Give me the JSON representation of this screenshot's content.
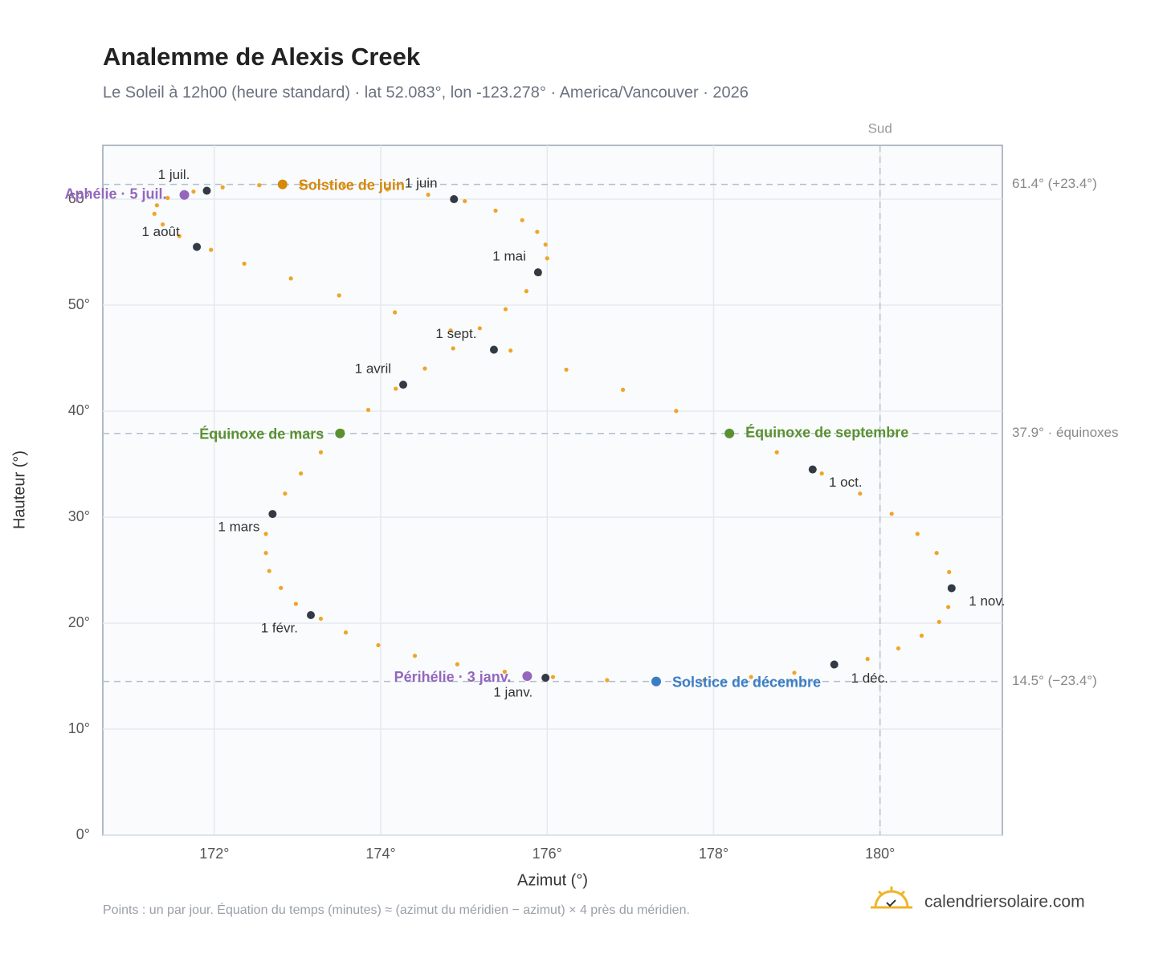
{
  "chart_data": {
    "type": "scatter",
    "title": "Analemme de Alexis Creek",
    "subtitle": "Le Soleil à 12h00 (heure standard) · lat 52.083°, lon -123.278° · America/Vancouver · 2026",
    "x_label": "Azimut (°)",
    "y_label": "Hauteur (°)",
    "xlim": [
      170.66,
      181.47
    ],
    "ylim": [
      0,
      65.08
    ],
    "xticks": [
      {
        "value": 172,
        "label": "172°"
      },
      {
        "value": 174,
        "label": "174°"
      },
      {
        "value": 176,
        "label": "176°"
      },
      {
        "value": 178,
        "label": "178°"
      },
      {
        "value": 180,
        "label": "180°"
      }
    ],
    "yticks": [
      {
        "value": 0,
        "label": "0°"
      },
      {
        "value": 10,
        "label": "10°"
      },
      {
        "value": 20,
        "label": "20°"
      },
      {
        "value": 30,
        "label": "30°"
      },
      {
        "value": 40,
        "label": "40°"
      },
      {
        "value": 50,
        "label": "50°"
      },
      {
        "value": 60,
        "label": "60°"
      }
    ],
    "grid": true,
    "points": {
      "color": "#f0a428",
      "x": [
        176.07,
        175.49,
        174.92,
        174.41,
        173.97,
        173.58,
        173.28,
        172.98,
        172.8,
        172.66,
        172.62,
        172.62,
        172.7,
        172.85,
        173.04,
        173.28,
        173.54,
        173.85,
        174.18,
        174.53,
        174.87,
        175.19,
        175.5,
        175.75,
        175.91,
        176.0,
        175.98,
        175.88,
        175.7,
        175.38,
        175.01,
        174.57,
        174.08,
        173.56,
        173.05,
        172.54,
        172.1,
        171.75,
        171.44,
        171.31,
        171.28,
        171.38,
        171.58,
        171.96,
        172.36,
        172.92,
        173.5,
        174.17,
        174.84,
        175.56,
        176.23,
        176.91,
        177.55,
        178.18,
        178.76,
        179.3,
        179.76,
        180.14,
        180.45,
        180.68,
        180.83,
        180.86,
        180.82,
        180.71,
        180.5,
        180.22,
        179.85,
        179.44,
        178.97,
        178.45,
        177.89,
        177.3,
        176.72
      ],
      "y": [
        14.92,
        15.42,
        16.12,
        16.92,
        17.92,
        19.12,
        20.42,
        21.82,
        23.32,
        24.92,
        26.62,
        28.42,
        30.32,
        32.22,
        34.12,
        36.12,
        38.12,
        40.12,
        42.12,
        44.02,
        45.92,
        47.82,
        49.62,
        51.32,
        52.92,
        54.42,
        55.72,
        56.92,
        58.02,
        58.92,
        59.82,
        60.42,
        60.92,
        61.22,
        61.36,
        61.32,
        61.12,
        60.72,
        60.12,
        59.42,
        58.62,
        57.62,
        56.52,
        55.22,
        53.92,
        52.52,
        50.92,
        49.32,
        47.62,
        45.72,
        43.92,
        42.02,
        40.02,
        38.12,
        36.12,
        34.12,
        32.22,
        30.32,
        28.42,
        26.62,
        24.82,
        23.12,
        21.52,
        20.12,
        18.82,
        17.62,
        16.62,
        15.92,
        15.32,
        14.92,
        14.62,
        14.48,
        14.62
      ]
    },
    "months": {
      "color": "#333a44",
      "labels": [
        "1 janv.",
        "1 févr.",
        "1 mars",
        "1 avril",
        "1 mai",
        "1 juin",
        "1 juil.",
        "1 août",
        "1 sept.",
        "1 oct.",
        "1 nov.",
        "1 déc."
      ],
      "x": [
        175.98,
        173.16,
        172.7,
        174.27,
        175.89,
        174.88,
        171.91,
        171.79,
        175.36,
        179.19,
        180.86,
        179.45
      ],
      "y": [
        14.85,
        20.76,
        30.3,
        42.5,
        53.1,
        60.0,
        60.8,
        55.5,
        45.8,
        34.5,
        23.3,
        16.1
      ]
    },
    "events": [
      {
        "label": "Solstice de juin",
        "x": 172.82,
        "y": 61.4,
        "color": "#d4890a"
      },
      {
        "label": "Solstice de décembre",
        "x": 177.31,
        "y": 14.5,
        "color": "#3b7dc4"
      },
      {
        "label": "Équinoxe de mars",
        "x": 173.51,
        "y": 37.9,
        "color": "#5a9130"
      },
      {
        "label": "Équinoxe de septembre",
        "x": 178.19,
        "y": 37.9,
        "color": "#5a9130"
      },
      {
        "label": "Aphélie · 5 juil.",
        "x": 171.64,
        "y": 60.4,
        "color": "#9467bd"
      },
      {
        "label": "Périhélie · 3 janv.",
        "x": 175.76,
        "y": 15.0,
        "color": "#9467bd"
      }
    ],
    "reference_lines": [
      {
        "value": 61.4,
        "label": "61.4° (+23.4°)"
      },
      {
        "value": 37.9,
        "label": "37.9° · équinoxes"
      },
      {
        "value": 14.5,
        "label": "14.5° (−23.4°)"
      }
    ],
    "meridian": {
      "value": 180,
      "label": "Sud"
    },
    "note": "Points : un par jour. Équation du temps (minutes) ≈ (azimut du méridien − azimut) × 4 près du méridien.",
    "brand": "calendriersolaire.com"
  }
}
